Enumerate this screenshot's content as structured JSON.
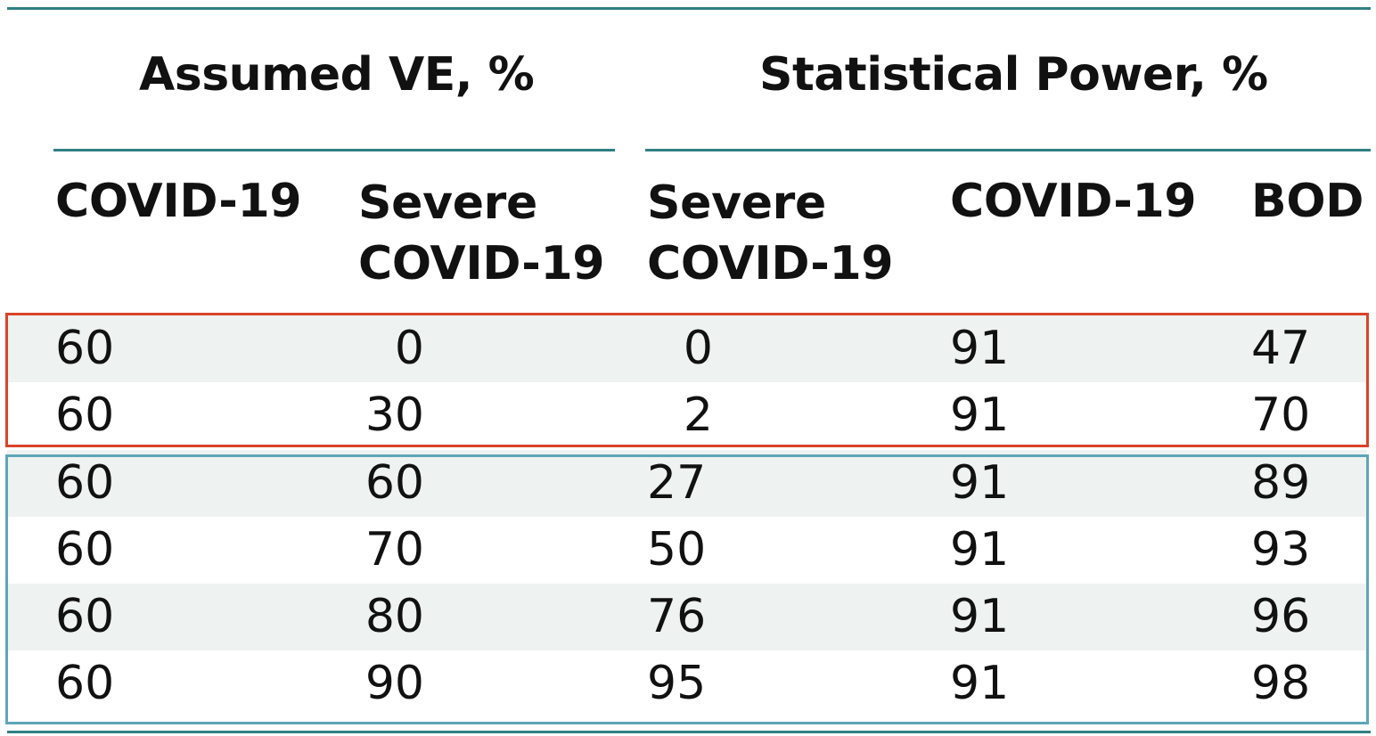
{
  "table": {
    "group_headers": {
      "assumed_ve": "Assumed VE, %",
      "statistical_power": "Statistical Power, %"
    },
    "columns": {
      "assumed_covid": "COVID-19",
      "assumed_severe_line1": "Severe",
      "assumed_severe_line2": "COVID-19",
      "power_severe_line1": "Severe",
      "power_severe_line2": "COVID-19",
      "power_covid": "COVID-19",
      "power_bod": "BOD"
    },
    "rows": [
      [
        "60",
        "0",
        "0",
        "91",
        "47"
      ],
      [
        "60",
        "30",
        "2",
        "91",
        "70"
      ],
      [
        "60",
        "60",
        "27",
        "91",
        "89"
      ],
      [
        "60",
        "70",
        "50",
        "91",
        "93"
      ],
      [
        "60",
        "80",
        "76",
        "91",
        "96"
      ],
      [
        "60",
        "90",
        "95",
        "91",
        "98"
      ]
    ],
    "highlight_colors": {
      "red_group": "#d9432a",
      "teal_group": "#5ea6b8",
      "rule": "#2f7f82",
      "row_shade": "#eef2f1"
    }
  }
}
